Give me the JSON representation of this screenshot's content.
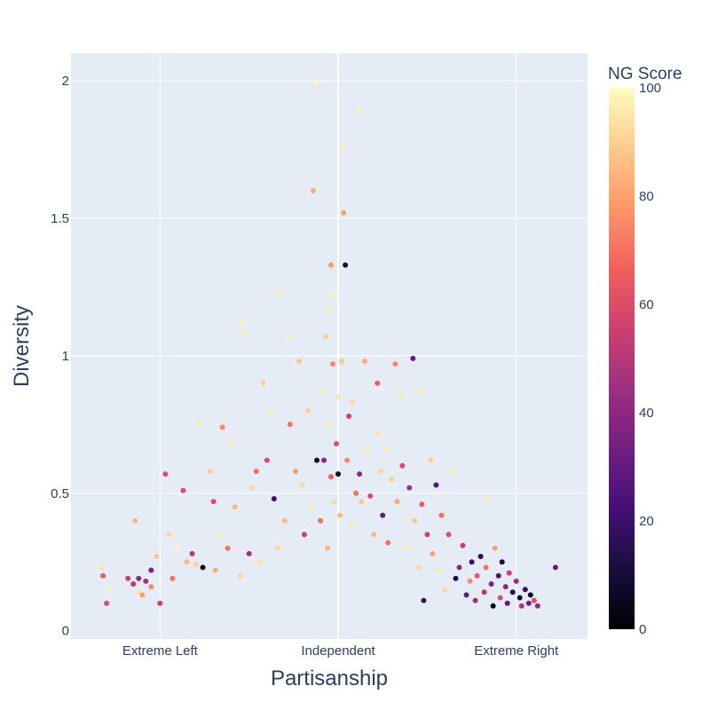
{
  "chart_data": {
    "type": "scatter",
    "xlabel": "Partisanship",
    "ylabel": "Diversity",
    "x_categories": [
      "Extreme Left",
      "Independent",
      "Extreme Right"
    ],
    "x_tick_positions": [
      -1,
      0,
      1
    ],
    "xlim": [
      -1.5,
      1.4
    ],
    "ylim": [
      -0.03,
      2.1
    ],
    "y_ticks": [
      0,
      0.5,
      1,
      1.5,
      2
    ],
    "y_tick_labels": [
      "0",
      "0.5",
      "1",
      "1.5",
      "2"
    ],
    "grid": true,
    "colorbar": {
      "title": "NG Score",
      "range": [
        0,
        100
      ],
      "ticks": [
        0,
        20,
        40,
        60,
        80,
        100
      ],
      "colorscale": [
        "#000004",
        "#180f3d",
        "#440f76",
        "#721f81",
        "#9e2f7f",
        "#cd4071",
        "#f1605d",
        "#fd9668",
        "#feca8d",
        "#fcfdbf"
      ]
    },
    "points": [
      {
        "x": -1.32,
        "y": 0.2,
        "s": 65
      },
      {
        "x": -1.3,
        "y": 0.1,
        "s": 60
      },
      {
        "x": -1.33,
        "y": 0.23,
        "s": 95
      },
      {
        "x": -1.28,
        "y": 0.15,
        "s": 98
      },
      {
        "x": -1.18,
        "y": 0.19,
        "s": 55
      },
      {
        "x": -1.14,
        "y": 0.4,
        "s": 85
      },
      {
        "x": -1.15,
        "y": 0.17,
        "s": 50
      },
      {
        "x": -1.12,
        "y": 0.14,
        "s": 95
      },
      {
        "x": -1.12,
        "y": 0.19,
        "s": 40
      },
      {
        "x": -1.1,
        "y": 0.13,
        "s": 80
      },
      {
        "x": -1.08,
        "y": 0.18,
        "s": 45
      },
      {
        "x": -1.05,
        "y": 0.22,
        "s": 35
      },
      {
        "x": -1.05,
        "y": 0.16,
        "s": 75
      },
      {
        "x": -1.02,
        "y": 0.27,
        "s": 88
      },
      {
        "x": -1.0,
        "y": 0.1,
        "s": 55
      },
      {
        "x": -0.97,
        "y": 0.57,
        "s": 60
      },
      {
        "x": -0.95,
        "y": 0.35,
        "s": 92
      },
      {
        "x": -0.93,
        "y": 0.19,
        "s": 70
      },
      {
        "x": -0.9,
        "y": 0.3,
        "s": 98
      },
      {
        "x": -0.87,
        "y": 0.51,
        "s": 60
      },
      {
        "x": -0.85,
        "y": 0.25,
        "s": 85
      },
      {
        "x": -0.82,
        "y": 0.28,
        "s": 50
      },
      {
        "x": -0.8,
        "y": 0.24,
        "s": 90
      },
      {
        "x": -0.78,
        "y": 0.76,
        "s": 96
      },
      {
        "x": -0.76,
        "y": 0.23,
        "s": 5
      },
      {
        "x": -0.72,
        "y": 0.58,
        "s": 90
      },
      {
        "x": -0.7,
        "y": 0.47,
        "s": 60
      },
      {
        "x": -0.69,
        "y": 0.22,
        "s": 82
      },
      {
        "x": -0.66,
        "y": 0.35,
        "s": 96
      },
      {
        "x": -0.65,
        "y": 0.74,
        "s": 75
      },
      {
        "x": -0.62,
        "y": 0.3,
        "s": 70
      },
      {
        "x": -0.6,
        "y": 0.68,
        "s": 95
      },
      {
        "x": -0.58,
        "y": 0.45,
        "s": 85
      },
      {
        "x": -0.55,
        "y": 0.2,
        "s": 92
      },
      {
        "x": -0.54,
        "y": 1.12,
        "s": 98
      },
      {
        "x": -0.53,
        "y": 1.08,
        "s": 96
      },
      {
        "x": -0.5,
        "y": 0.28,
        "s": 45
      },
      {
        "x": -0.48,
        "y": 0.52,
        "s": 92
      },
      {
        "x": -0.46,
        "y": 0.58,
        "s": 70
      },
      {
        "x": -0.44,
        "y": 0.25,
        "s": 95
      },
      {
        "x": -0.42,
        "y": 0.9,
        "s": 90
      },
      {
        "x": -0.4,
        "y": 0.62,
        "s": 60
      },
      {
        "x": -0.38,
        "y": 0.8,
        "s": 95
      },
      {
        "x": -0.36,
        "y": 0.48,
        "s": 20
      },
      {
        "x": -0.34,
        "y": 0.3,
        "s": 92
      },
      {
        "x": -0.34,
        "y": 1.23,
        "s": 96
      },
      {
        "x": -0.3,
        "y": 0.4,
        "s": 85
      },
      {
        "x": -0.28,
        "y": 1.07,
        "s": 97
      },
      {
        "x": -0.27,
        "y": 0.75,
        "s": 70
      },
      {
        "x": -0.24,
        "y": 0.58,
        "s": 80
      },
      {
        "x": -0.22,
        "y": 0.98,
        "s": 88
      },
      {
        "x": -0.2,
        "y": 0.53,
        "s": 92
      },
      {
        "x": -0.19,
        "y": 0.35,
        "s": 55
      },
      {
        "x": -0.17,
        "y": 0.8,
        "s": 90
      },
      {
        "x": -0.15,
        "y": 0.45,
        "s": 96
      },
      {
        "x": -0.14,
        "y": 1.6,
        "s": 82
      },
      {
        "x": -0.12,
        "y": 0.62,
        "s": 8
      },
      {
        "x": -0.12,
        "y": 1.99,
        "s": 98
      },
      {
        "x": -0.1,
        "y": 0.4,
        "s": 70
      },
      {
        "x": -0.09,
        "y": 0.87,
        "s": 96
      },
      {
        "x": -0.08,
        "y": 0.62,
        "s": 40
      },
      {
        "x": -0.07,
        "y": 1.07,
        "s": 90
      },
      {
        "x": -0.06,
        "y": 0.3,
        "s": 85
      },
      {
        "x": -0.05,
        "y": 0.75,
        "s": 95
      },
      {
        "x": -0.04,
        "y": 0.56,
        "s": 65
      },
      {
        "x": -0.03,
        "y": 0.97,
        "s": 75
      },
      {
        "x": -0.02,
        "y": 0.47,
        "s": 92
      },
      {
        "x": -0.01,
        "y": 0.68,
        "s": 60
      },
      {
        "x": 0.0,
        "y": 0.85,
        "s": 95
      },
      {
        "x": 0.0,
        "y": 0.57,
        "s": 5
      },
      {
        "x": -0.04,
        "y": 1.33,
        "s": 78
      },
      {
        "x": -0.03,
        "y": 1.22,
        "s": 97
      },
      {
        "x": -0.05,
        "y": 1.17,
        "s": 96
      },
      {
        "x": 0.01,
        "y": 0.42,
        "s": 85
      },
      {
        "x": 0.02,
        "y": 0.98,
        "s": 88
      },
      {
        "x": 0.02,
        "y": 1.76,
        "s": 97
      },
      {
        "x": 0.03,
        "y": 1.52,
        "s": 80
      },
      {
        "x": 0.04,
        "y": 1.33,
        "s": 10
      },
      {
        "x": 0.05,
        "y": 0.62,
        "s": 75
      },
      {
        "x": 0.06,
        "y": 0.78,
        "s": 55
      },
      {
        "x": 0.07,
        "y": 0.38,
        "s": 95
      },
      {
        "x": 0.08,
        "y": 0.83,
        "s": 92
      },
      {
        "x": 0.1,
        "y": 0.5,
        "s": 70
      },
      {
        "x": 0.11,
        "y": 1.89,
        "s": 97
      },
      {
        "x": 0.12,
        "y": 0.57,
        "s": 40
      },
      {
        "x": 0.13,
        "y": 0.47,
        "s": 88
      },
      {
        "x": 0.15,
        "y": 0.98,
        "s": 82
      },
      {
        "x": 0.16,
        "y": 0.65,
        "s": 96
      },
      {
        "x": 0.18,
        "y": 0.49,
        "s": 60
      },
      {
        "x": 0.2,
        "y": 0.35,
        "s": 85
      },
      {
        "x": 0.22,
        "y": 0.72,
        "s": 95
      },
      {
        "x": 0.22,
        "y": 0.9,
        "s": 65
      },
      {
        "x": 0.24,
        "y": 0.58,
        "s": 92
      },
      {
        "x": 0.25,
        "y": 0.42,
        "s": 30
      },
      {
        "x": 0.27,
        "y": 0.66,
        "s": 97
      },
      {
        "x": 0.28,
        "y": 0.32,
        "s": 70
      },
      {
        "x": 0.3,
        "y": 0.55,
        "s": 90
      },
      {
        "x": 0.32,
        "y": 0.97,
        "s": 75
      },
      {
        "x": 0.33,
        "y": 0.47,
        "s": 82
      },
      {
        "x": 0.35,
        "y": 0.86,
        "s": 95
      },
      {
        "x": 0.36,
        "y": 0.6,
        "s": 60
      },
      {
        "x": 0.38,
        "y": 0.3,
        "s": 96
      },
      {
        "x": 0.4,
        "y": 0.52,
        "s": 45
      },
      {
        "x": 0.42,
        "y": 0.99,
        "s": 30
      },
      {
        "x": 0.43,
        "y": 0.4,
        "s": 88
      },
      {
        "x": 0.45,
        "y": 0.23,
        "s": 92
      },
      {
        "x": 0.46,
        "y": 0.87,
        "s": 97
      },
      {
        "x": 0.47,
        "y": 0.46,
        "s": 65
      },
      {
        "x": 0.48,
        "y": 0.11,
        "s": 20
      },
      {
        "x": 0.5,
        "y": 0.35,
        "s": 55
      },
      {
        "x": 0.52,
        "y": 0.62,
        "s": 90
      },
      {
        "x": 0.53,
        "y": 0.28,
        "s": 80
      },
      {
        "x": 0.55,
        "y": 0.53,
        "s": 25
      },
      {
        "x": 0.56,
        "y": 0.22,
        "s": 95
      },
      {
        "x": 0.58,
        "y": 0.42,
        "s": 70
      },
      {
        "x": 0.6,
        "y": 0.15,
        "s": 92
      },
      {
        "x": 0.62,
        "y": 0.35,
        "s": 60
      },
      {
        "x": 0.64,
        "y": 0.58,
        "s": 97
      },
      {
        "x": 0.66,
        "y": 0.19,
        "s": 10
      },
      {
        "x": 0.68,
        "y": 0.23,
        "s": 40
      },
      {
        "x": 0.7,
        "y": 0.31,
        "s": 55
      },
      {
        "x": 0.72,
        "y": 0.13,
        "s": 30
      },
      {
        "x": 0.74,
        "y": 0.18,
        "s": 75
      },
      {
        "x": 0.75,
        "y": 0.25,
        "s": 20
      },
      {
        "x": 0.77,
        "y": 0.11,
        "s": 45
      },
      {
        "x": 0.78,
        "y": 0.2,
        "s": 65
      },
      {
        "x": 0.8,
        "y": 0.27,
        "s": 15
      },
      {
        "x": 0.82,
        "y": 0.14,
        "s": 50
      },
      {
        "x": 0.83,
        "y": 0.23,
        "s": 70
      },
      {
        "x": 0.84,
        "y": 0.48,
        "s": 97
      },
      {
        "x": 0.86,
        "y": 0.17,
        "s": 35
      },
      {
        "x": 0.87,
        "y": 0.09,
        "s": 5
      },
      {
        "x": 0.88,
        "y": 0.3,
        "s": 80
      },
      {
        "x": 0.9,
        "y": 0.2,
        "s": 25
      },
      {
        "x": 0.91,
        "y": 0.12,
        "s": 60
      },
      {
        "x": 0.92,
        "y": 0.25,
        "s": 10
      },
      {
        "x": 0.94,
        "y": 0.16,
        "s": 40
      },
      {
        "x": 0.95,
        "y": 0.1,
        "s": 30
      },
      {
        "x": 0.96,
        "y": 0.21,
        "s": 55
      },
      {
        "x": 0.98,
        "y": 0.14,
        "s": 15
      },
      {
        "x": 1.0,
        "y": 0.18,
        "s": 45
      },
      {
        "x": 1.02,
        "y": 0.12,
        "s": 8
      },
      {
        "x": 1.03,
        "y": 0.09,
        "s": 50
      },
      {
        "x": 1.05,
        "y": 0.15,
        "s": 20
      },
      {
        "x": 1.07,
        "y": 0.1,
        "s": 35
      },
      {
        "x": 1.08,
        "y": 0.13,
        "s": 5
      },
      {
        "x": 1.1,
        "y": 0.11,
        "s": 60
      },
      {
        "x": 1.12,
        "y": 0.09,
        "s": 40
      },
      {
        "x": 1.22,
        "y": 0.23,
        "s": 30
      }
    ]
  }
}
